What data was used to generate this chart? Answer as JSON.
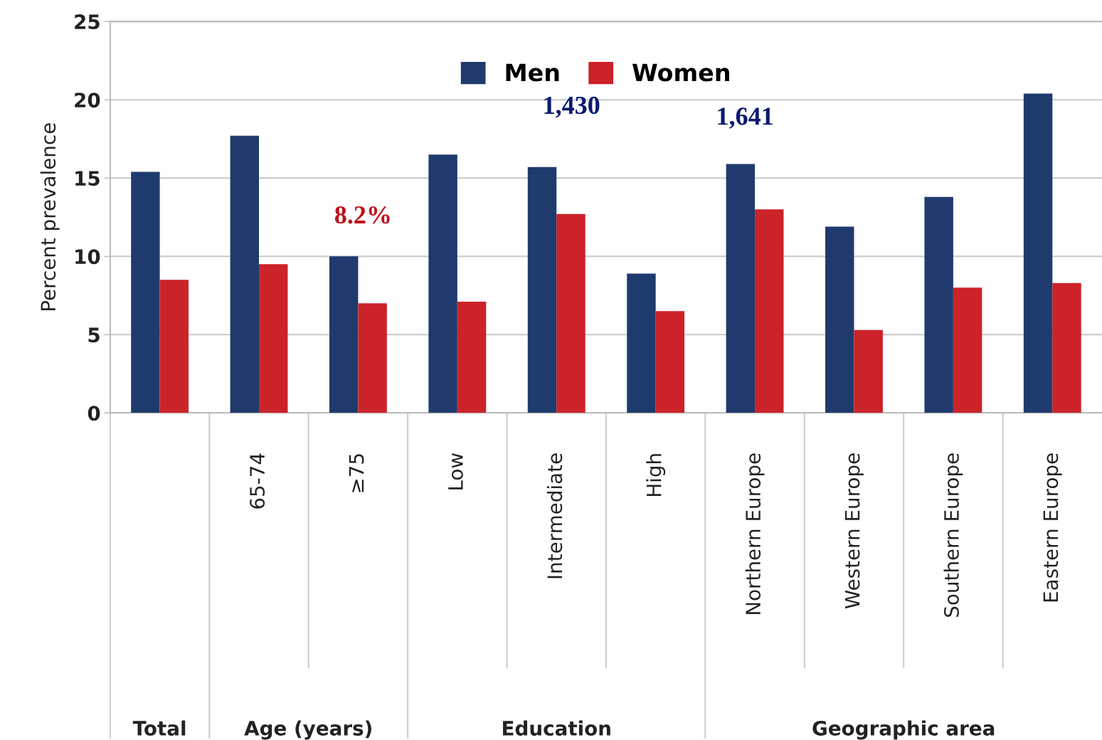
{
  "chart_data": {
    "type": "bar",
    "ylabel": "Percent prevalence",
    "categories": [
      null,
      "65-74",
      "≥75",
      "Low",
      "Intermediate",
      "High",
      "Northern Europe",
      "Western Europe",
      "Southern Europe",
      "Eastern Europe"
    ],
    "series": [
      {
        "name": "Men",
        "color": "#1f3b6e",
        "values": [
          15.4,
          17.7,
          10.0,
          16.5,
          15.7,
          8.9,
          15.9,
          11.9,
          13.8,
          20.4
        ]
      },
      {
        "name": "Women",
        "color": "#cc2229",
        "values": [
          8.5,
          9.5,
          7.0,
          7.1,
          12.7,
          6.5,
          13.0,
          5.3,
          8.0,
          8.3
        ]
      }
    ],
    "ylim": [
      0,
      25
    ],
    "yticks": [
      0,
      5,
      10,
      15,
      20,
      25
    ],
    "grid": "y",
    "legend": "top",
    "annotations": [
      "Total",
      "Age (years)",
      "Education",
      "Geographic area",
      "8.2%",
      "1,430",
      "1,641"
    ]
  }
}
